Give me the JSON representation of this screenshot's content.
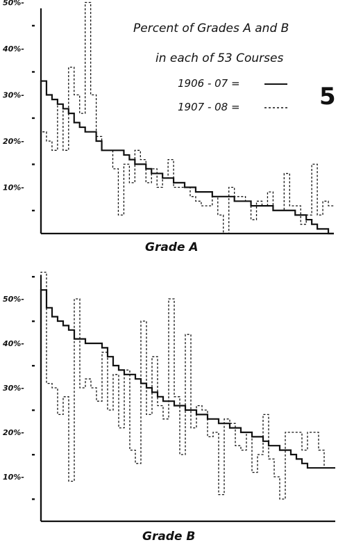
{
  "figure": {
    "title_line1": "Percent of Grades A and B",
    "title_line2": "in each of 53 Courses",
    "legend_solid": "1906 - 07 =",
    "legend_dashed": "1907 - 08 =",
    "number": "5"
  },
  "chart_data": [
    {
      "type": "line",
      "title": "",
      "xlabel": "Grade A",
      "ylabel": "",
      "yticks": [
        10,
        20,
        30,
        40,
        50
      ],
      "ytick_labels": [
        "10%-",
        "20%-",
        "30%-",
        "40%-",
        "50%-"
      ],
      "ylim": [
        0,
        50
      ],
      "x": [
        1,
        2,
        3,
        4,
        5,
        6,
        7,
        8,
        9,
        10,
        11,
        12,
        13,
        14,
        15,
        16,
        17,
        18,
        19,
        20,
        21,
        22,
        23,
        24,
        25,
        26,
        27,
        28,
        29,
        30,
        31,
        32,
        33,
        34,
        35,
        36,
        37,
        38,
        39,
        40,
        41,
        42,
        43,
        44,
        45,
        46,
        47,
        48,
        49,
        50,
        51,
        52,
        53
      ],
      "grid": false,
      "legend_position": "top-right",
      "series": [
        {
          "name": "1906 - 07",
          "style": "solid",
          "values": [
            33,
            30,
            29,
            28,
            27,
            26,
            24,
            23,
            22,
            22,
            20,
            18,
            18,
            18,
            18,
            17,
            16,
            15,
            15,
            14,
            13,
            13,
            12,
            12,
            11,
            11,
            10,
            10,
            9,
            9,
            9,
            8,
            8,
            8,
            8,
            7,
            7,
            7,
            6,
            6,
            6,
            6,
            5,
            5,
            5,
            5,
            4,
            4,
            3,
            2,
            1,
            1,
            0
          ]
        },
        {
          "name": "1907 - 08",
          "style": "dashed",
          "values": [
            22,
            20,
            18,
            28,
            18,
            36,
            30,
            26,
            50,
            30,
            21,
            18,
            18,
            14,
            4,
            15,
            11,
            18,
            16,
            11,
            14,
            10,
            12,
            16,
            10,
            10,
            10,
            8,
            7,
            6,
            6,
            8,
            4,
            0,
            10,
            8,
            8,
            7,
            3,
            7,
            6,
            9,
            5,
            5,
            13,
            6,
            6,
            2,
            4,
            15,
            4,
            7,
            6
          ]
        }
      ]
    },
    {
      "type": "line",
      "title": "",
      "xlabel": "Grade B",
      "ylabel": "",
      "yticks": [
        10,
        20,
        30,
        40,
        50
      ],
      "ytick_labels": [
        "10%-",
        "20%-",
        "30%-",
        "40%-",
        "50%-"
      ],
      "ylim": [
        0,
        55
      ],
      "x": [
        1,
        2,
        3,
        4,
        5,
        6,
        7,
        8,
        9,
        10,
        11,
        12,
        13,
        14,
        15,
        16,
        17,
        18,
        19,
        20,
        21,
        22,
        23,
        24,
        25,
        26,
        27,
        28,
        29,
        30,
        31,
        32,
        33,
        34,
        35,
        36,
        37,
        38,
        39,
        40,
        41,
        42,
        43,
        44,
        45,
        46,
        47,
        48,
        49,
        50,
        51,
        52,
        53
      ],
      "grid": false,
      "legend_position": "none",
      "series": [
        {
          "name": "1906 - 07",
          "style": "solid",
          "values": [
            52,
            48,
            46,
            45,
            44,
            43,
            41,
            41,
            40,
            40,
            40,
            39,
            37,
            35,
            34,
            33,
            33,
            32,
            31,
            30,
            29,
            28,
            27,
            27,
            26,
            26,
            25,
            25,
            24,
            24,
            23,
            23,
            22,
            22,
            21,
            21,
            20,
            20,
            19,
            19,
            18,
            17,
            17,
            16,
            16,
            15,
            14,
            13,
            12,
            12,
            12,
            12,
            12
          ]
        },
        {
          "name": "1907 - 08",
          "style": "dashed",
          "values": [
            56,
            31,
            30,
            24,
            28,
            9,
            50,
            30,
            32,
            30,
            27,
            38,
            25,
            33,
            21,
            34,
            16,
            13,
            45,
            24,
            37,
            26,
            23,
            50,
            28,
            15,
            42,
            21,
            26,
            25,
            19,
            20,
            6,
            23,
            22,
            17,
            16,
            20,
            11,
            15,
            24,
            14,
            10,
            5,
            20,
            20,
            20,
            16,
            20,
            20,
            16,
            12,
            12
          ]
        }
      ]
    }
  ]
}
